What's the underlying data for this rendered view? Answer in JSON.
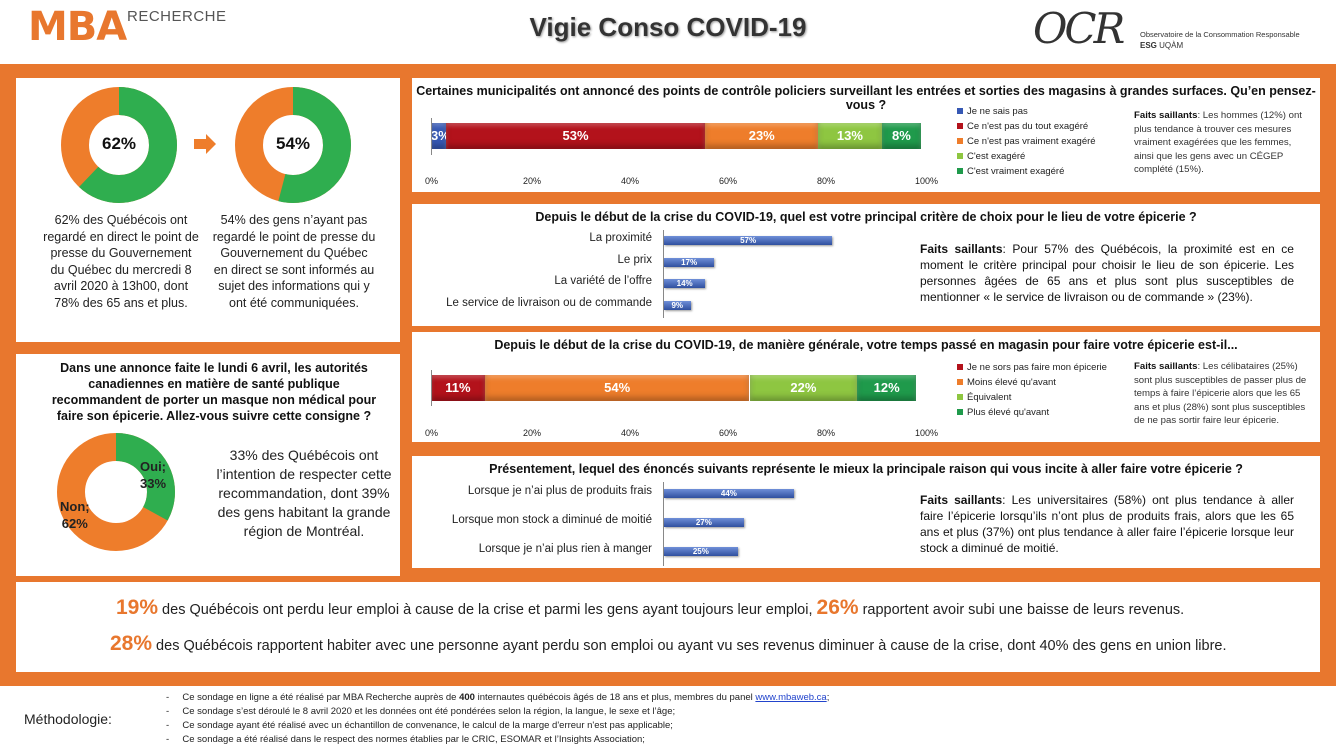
{
  "header": {
    "mba_logo": "MBA",
    "mba_sub": "RECHERCHE",
    "title": "Vigie Conso COVID-19",
    "ocr_logo": "OCR",
    "ocr_line1": "Observatoire de la Consommation Responsable",
    "ocr_line2_esg": "ESG",
    "ocr_line2_uqam": "UQÀM"
  },
  "colors": {
    "accent": "#e8772e",
    "green": "#2fae4f",
    "orange": "#ee7d2b",
    "red": "#b3121b",
    "lightgreen": "#8ec641",
    "darkgreen": "#1f9a4b",
    "blue": "#3658b4"
  },
  "left_top": {
    "donut1": {
      "value": "62%",
      "pct": 62
    },
    "arrow": "arrow-right",
    "donut2": {
      "value": "54%",
      "pct": 54
    },
    "text1": "62% des Québécois ont regardé en direct le point de presse du Gouvernement du Québec du mercredi 8 avril 2020 à 13h00, dont 78% des 65 ans et plus.",
    "text2": "54% des gens n’ayant pas regardé le point de presse du Gouvernement du Québec en direct se sont informés au sujet des informations qui y ont été communiquées."
  },
  "left_bottom": {
    "question": "Dans une annonce faite le lundi 6 avril, les autorités canadiennes en matière de santé publique recommandent de porter un masque non médical pour faire son épicerie. Allez-vous suivre cette consigne ?",
    "oui_label": "Oui;",
    "oui_value": "33%",
    "non_label": "Non;",
    "non_value": "62%",
    "text": "33% des Québécois ont l’intention de respecter cette recommandation, dont 39% des gens habitant la grande région de Montréal."
  },
  "chart_data": [
    {
      "type": "bar",
      "stacked": true,
      "title": "Certaines municipalités ont annoncé des points de contrôle policiers surveillant les entrées et sorties des magasins à grandes surfaces. Qu’en pensez-vous ?",
      "series": [
        {
          "name": "Je ne sais pas",
          "value": 3,
          "label": "3%",
          "color": "#3658b4"
        },
        {
          "name": "Ce n'est pas du tout exagéré",
          "value": 53,
          "label": "53%",
          "color": "#b3121b"
        },
        {
          "name": "Ce n'est pas vraiment exagéré",
          "value": 23,
          "label": "23%",
          "color": "#ee7d2b"
        },
        {
          "name": "C'est exagéré",
          "value": 13,
          "label": "13%",
          "color": "#8ec641"
        },
        {
          "name": "C'est vraiment exagéré",
          "value": 8,
          "label": "8%",
          "color": "#1f9a4b"
        }
      ],
      "ticks": [
        "0%",
        "20%",
        "40%",
        "60%",
        "80%",
        "100%"
      ],
      "faits_title": "Faits saillants",
      "faits": ": Les hommes (12%) ont plus tendance à trouver ces mesures vraiment exagérées que les femmes, ainsi que les gens avec un CÉGEP complété (15%)."
    },
    {
      "type": "bar",
      "title": "Depuis le début de la crise du COVID-19, quel est votre principal critère de choix pour le lieu de votre épicerie ?",
      "categories": [
        "La proximité",
        "Le prix",
        "La variété de l’offre",
        "Le service de livraison ou de commande"
      ],
      "values": [
        57,
        17,
        14,
        9
      ],
      "labels": [
        "57%",
        "17%",
        "14%",
        "9%"
      ],
      "faits_title": "Faits saillants",
      "faits": ": Pour 57% des Québécois, la proximité est en ce moment le critère principal pour choisir le lieu de son épicerie. Les personnes âgées de 65 ans et plus sont plus susceptibles de mentionner « le service de livraison ou de commande » (23%)."
    },
    {
      "type": "bar",
      "stacked": true,
      "title": "Depuis le début de la crise du COVID-19, de manière générale, votre temps passé en magasin pour faire votre épicerie est-il...",
      "series": [
        {
          "name": "Je ne sors pas faire mon épicerie",
          "value": 11,
          "label": "11%",
          "color": "#b3121b"
        },
        {
          "name": "Moins élevé qu'avant",
          "value": 54,
          "label": "54%",
          "color": "#ee7d2b"
        },
        {
          "name": "Équivalent",
          "value": 22,
          "label": "22%",
          "color": "#8ec641"
        },
        {
          "name": "Plus élevé qu'avant",
          "value": 12,
          "label": "12%",
          "color": "#1f9a4b"
        }
      ],
      "ticks": [
        "0%",
        "20%",
        "40%",
        "60%",
        "80%",
        "100%"
      ],
      "faits_title": "Faits saillants",
      "faits": ": Les célibataires (25%) sont plus susceptibles de passer plus de temps à faire l’épicerie alors que les 65 ans et plus (28%) sont plus susceptibles de ne pas sortir faire leur épicerie."
    },
    {
      "type": "bar",
      "title": "Présentement, lequel des énoncés suivants représente le mieux la principale raison qui vous incite à aller faire votre épicerie ?",
      "categories": [
        "Lorsque je n’ai plus de produits frais",
        "Lorsque mon stock a diminué de moitié",
        "Lorsque je n’ai plus rien à manger"
      ],
      "values": [
        44,
        27,
        25
      ],
      "labels": [
        "44%",
        "27%",
        "25%"
      ],
      "faits_title": "Faits saillants",
      "faits": ": Les universitaires (58%) ont plus tendance à aller faire l’épicerie lorsqu’ils n’ont plus de produits frais, alors que les 65 ans et plus (37%) ont plus tendance à aller faire l’épicerie lorsque leur stock a diminué de moitié."
    }
  ],
  "banner": {
    "line1_pct1": "19%",
    "line1_text1": " des Québécois ont perdu leur emploi à cause de la crise et parmi les gens ayant toujours leur emploi, ",
    "line1_pct2": "26%",
    "line1_text2": " rapportent avoir subi une baisse de leurs revenus.",
    "line2_pct": "28%",
    "line2_text": " des Québécois rapportent habiter avec une personne ayant perdu son emploi ou ayant vu ses revenus diminuer à cause de la crise, dont 40% des gens en union libre."
  },
  "methodology": {
    "label": "Méthodologie:",
    "items": [
      {
        "pre": "Ce sondage en ligne a été réalisé par MBA Recherche auprès de ",
        "bold": "400",
        "post": " internautes québécois âgés de 18 ans et plus, membres du panel ",
        "link": "www.mbaweb.ca",
        "end": ";"
      },
      {
        "text": "Ce sondage s’est déroulé le 8 avril 2020 et les données ont été pondérées selon la région, la langue, le sexe et l’âge;"
      },
      {
        "text": "Ce sondage ayant été réalisé avec un échantillon de convenance, le calcul de la marge d'erreur n'est pas applicable;"
      },
      {
        "text": "Ce sondage a été réalisé dans le respect des normes établies par le CRIC, ESOMAR et l’Insights Association;"
      }
    ],
    "bullet": "-"
  }
}
